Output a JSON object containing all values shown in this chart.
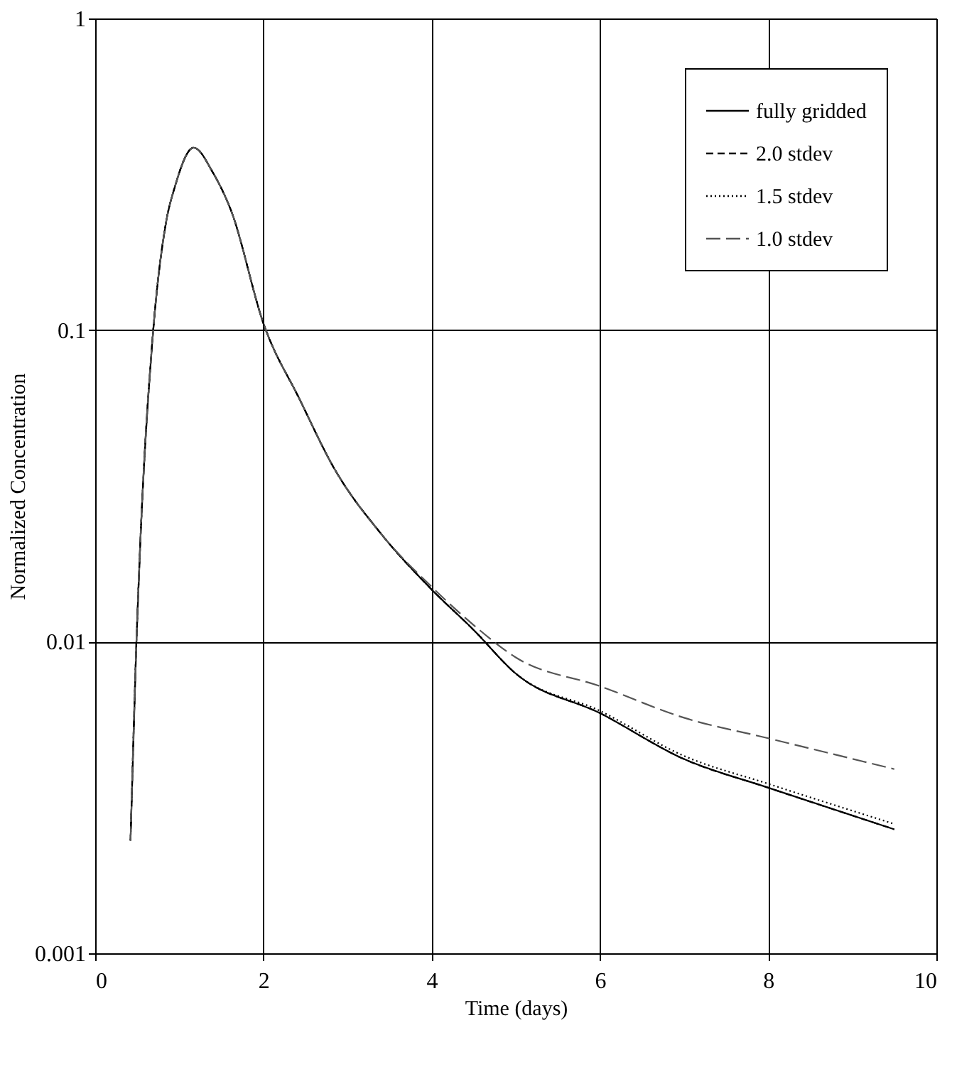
{
  "chart_data": {
    "type": "line",
    "xlabel": "Time (days)",
    "ylabel": "Normalized Concentration",
    "xlim": [
      0,
      10
    ],
    "xticks": [
      0,
      2,
      4,
      6,
      8,
      10
    ],
    "ylim": [
      0.001,
      1
    ],
    "yticks": [
      0.001,
      0.01,
      0.1,
      1
    ],
    "log": "y",
    "grid": true,
    "legend": "top right",
    "series": [
      {
        "name": "fully gridded",
        "color": "#000000",
        "line_style": "solid",
        "x": [
          0.42,
          0.49,
          0.54,
          0.69,
          0.84,
          0.95,
          1.17,
          1.4,
          1.62,
          2.0,
          2.43,
          2.84,
          3.41,
          4.0,
          4.5,
          5.0,
          6.0,
          7.0,
          8.0,
          9.5
        ],
        "values": [
          0.0023,
          0.01,
          0.022,
          0.1,
          0.22,
          0.29,
          0.385,
          0.32,
          0.24,
          0.105,
          0.06,
          0.036,
          0.022,
          0.0147,
          0.0109,
          0.0079,
          0.0059,
          0.0042,
          0.0034,
          0.0025
        ]
      },
      {
        "name": "2.0 stdev",
        "color": "#000000",
        "line_style": "dashed",
        "x": [
          0.42,
          0.49,
          0.54,
          0.69,
          0.84,
          0.95,
          1.17,
          1.4,
          1.62,
          2.0,
          2.43,
          2.84,
          3.41,
          4.0,
          4.5,
          5.0,
          6.0,
          7.0,
          8.0,
          9.5
        ],
        "values": [
          0.0023,
          0.01,
          0.022,
          0.1,
          0.22,
          0.29,
          0.385,
          0.32,
          0.24,
          0.105,
          0.06,
          0.036,
          0.022,
          0.0147,
          0.0109,
          0.0079,
          0.0059,
          0.0042,
          0.0034,
          0.0025
        ]
      },
      {
        "name": "1.5 stdev",
        "color": "#000000",
        "line_style": "dotted",
        "x": [
          0.42,
          0.49,
          0.54,
          0.69,
          0.84,
          0.95,
          1.17,
          1.4,
          1.62,
          2.0,
          2.43,
          2.84,
          3.41,
          4.0,
          4.5,
          5.0,
          6.0,
          7.0,
          8.0,
          9.5
        ],
        "values": [
          0.0023,
          0.01,
          0.022,
          0.1,
          0.22,
          0.29,
          0.385,
          0.32,
          0.24,
          0.105,
          0.06,
          0.036,
          0.022,
          0.0147,
          0.0109,
          0.0079,
          0.006,
          0.0043,
          0.0035,
          0.0026
        ]
      },
      {
        "name": "1.0 stdev",
        "color": "#555555",
        "line_style": "longdash",
        "x": [
          0.42,
          0.49,
          0.54,
          0.69,
          0.84,
          0.95,
          1.17,
          1.4,
          1.62,
          2.0,
          2.43,
          2.84,
          3.41,
          4.0,
          4.5,
          5.0,
          6.0,
          7.0,
          8.0,
          9.5
        ],
        "values": [
          0.0023,
          0.01,
          0.022,
          0.1,
          0.22,
          0.29,
          0.385,
          0.32,
          0.24,
          0.105,
          0.06,
          0.036,
          0.022,
          0.015,
          0.0113,
          0.0089,
          0.0072,
          0.0057,
          0.0049,
          0.0039
        ]
      }
    ]
  }
}
